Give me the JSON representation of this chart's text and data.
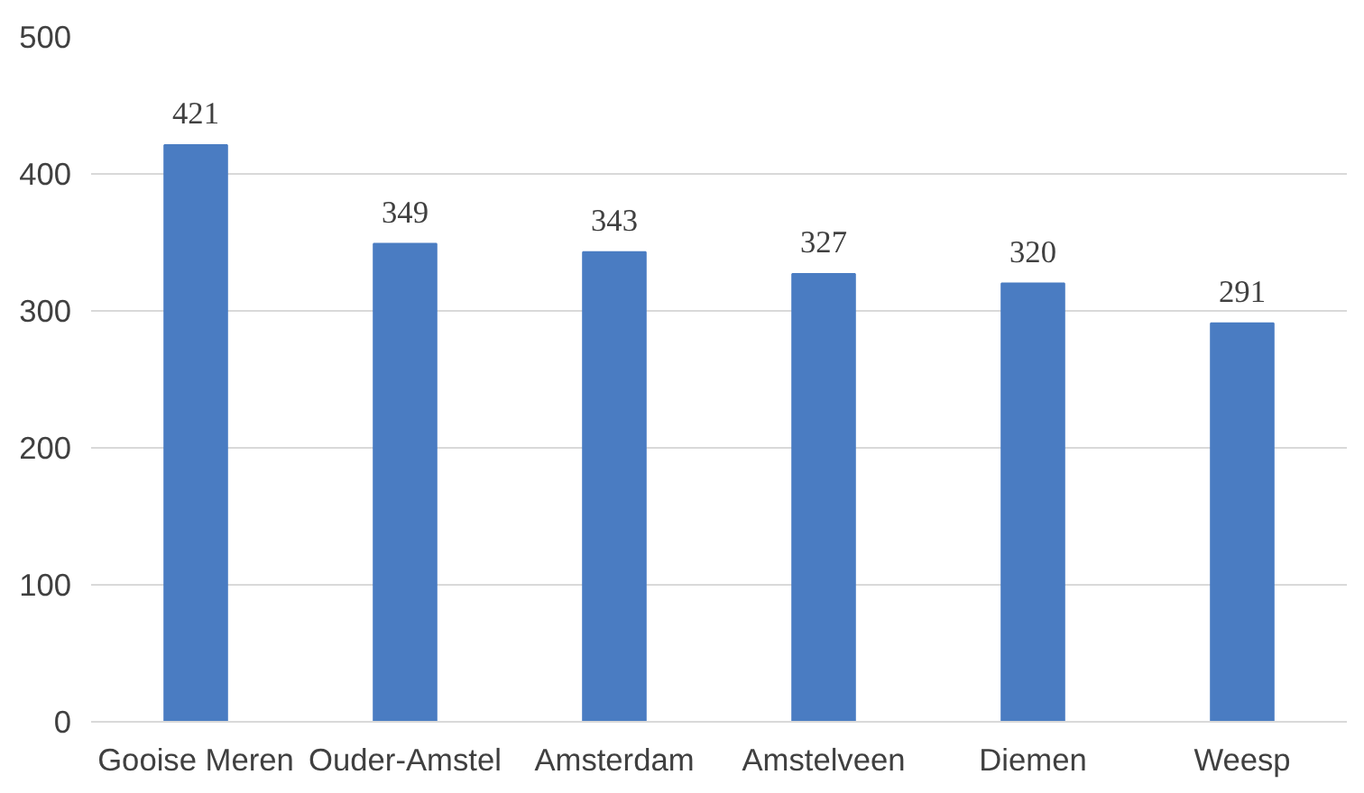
{
  "chart_data": {
    "type": "bar",
    "categories": [
      "Gooise Meren",
      "Ouder-Amstel",
      "Amsterdam",
      "Amstelveen",
      "Diemen",
      "Weesp"
    ],
    "values": [
      421,
      349,
      343,
      327,
      320,
      291
    ],
    "color": "#4a7cc2",
    "ylim": [
      0,
      500
    ],
    "yticks": [
      0,
      100,
      200,
      300,
      400,
      500
    ],
    "grid": "y",
    "data_labels": true
  }
}
